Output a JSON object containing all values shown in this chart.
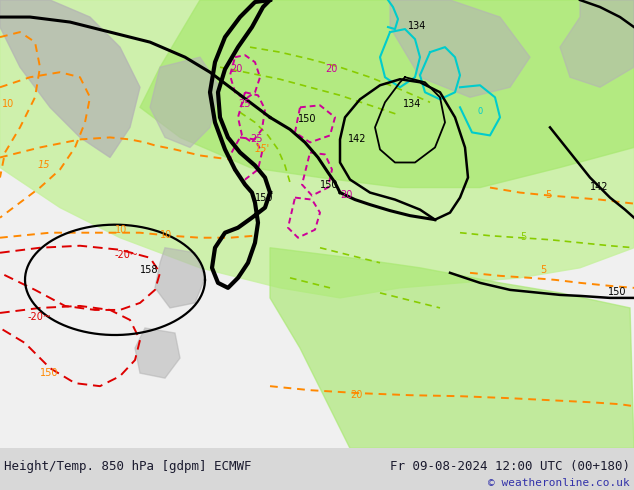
{
  "title_left": "Height/Temp. 850 hPa [gdpm] ECMWF",
  "title_right": "Fr 09-08-2024 12:00 UTC (00+180)",
  "copyright": "© weatheronline.co.uk",
  "bg_color": "#d8d8d8",
  "map_bg": "#e8e8e8",
  "text_color": "#1a1a2e",
  "copyright_color": "#3333aa",
  "figsize": [
    6.34,
    4.9
  ],
  "dpi": 100,
  "land_green": "#c8f0a0",
  "land_bright_green": "#a8e870",
  "gray_terrain": "#b4b4b4",
  "white_ocean": "#f0f0f0",
  "black_contour": "#000000",
  "orange_temp": "#ff8800",
  "green_contour": "#88cc00",
  "cyan_contour": "#00cccc",
  "red_temp": "#dd0000",
  "magenta_temp": "#cc0099"
}
